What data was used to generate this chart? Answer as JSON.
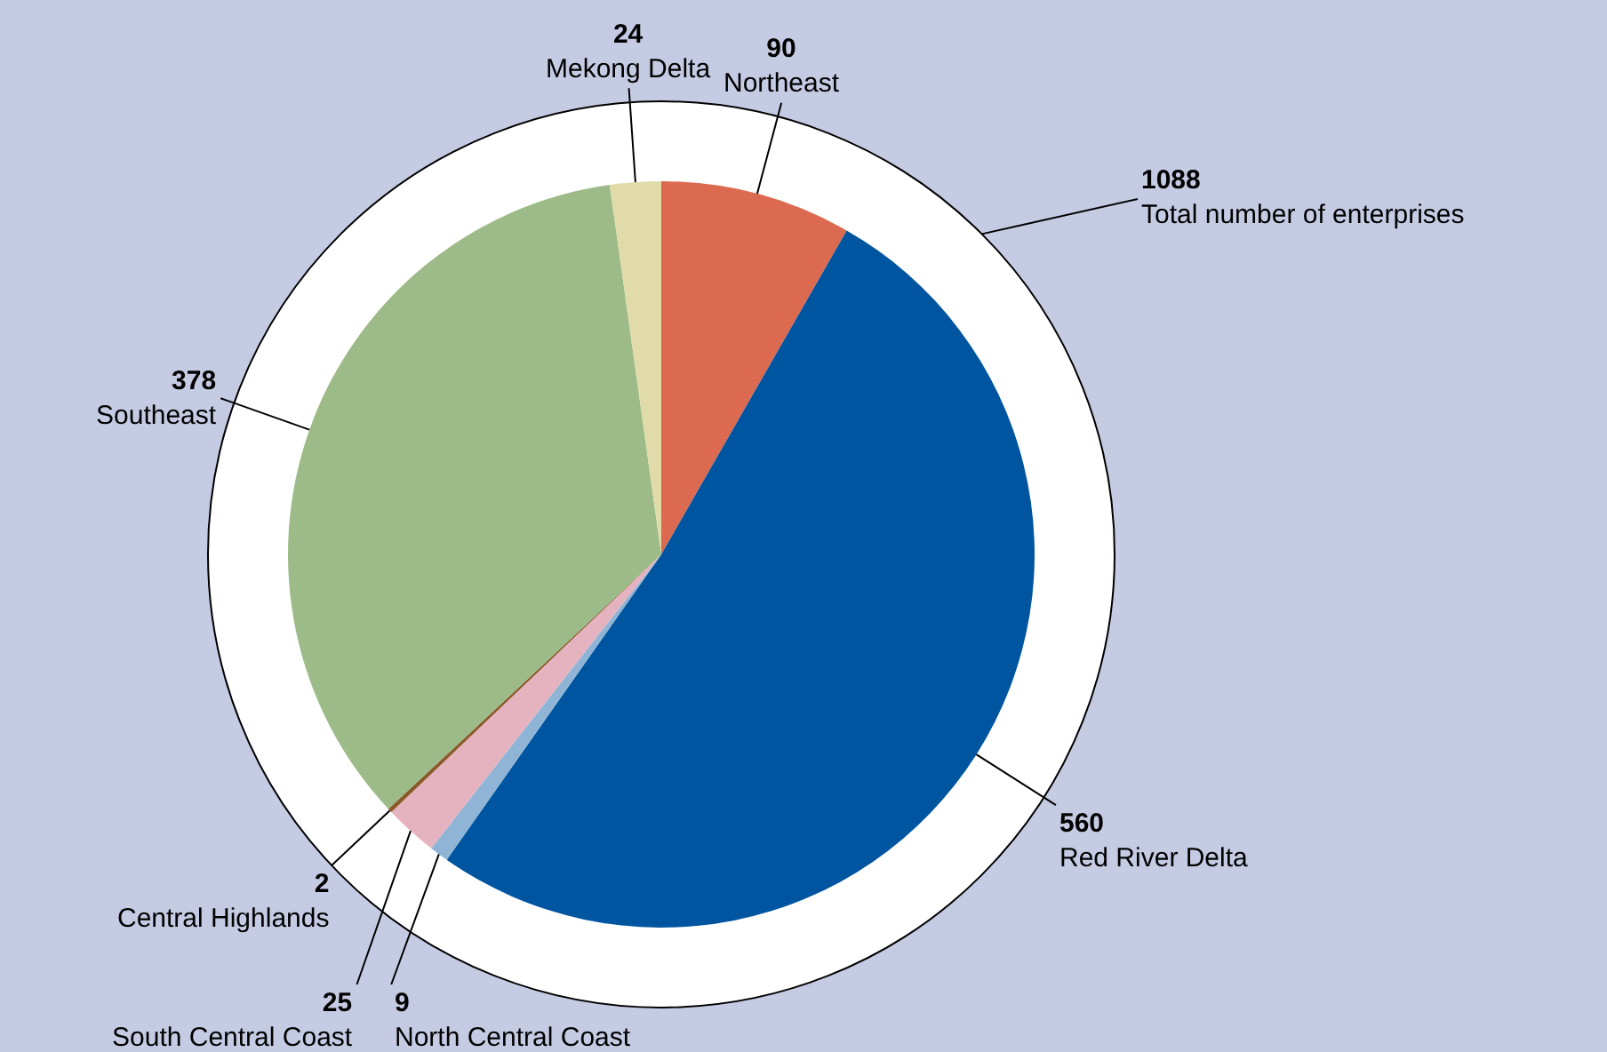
{
  "chart_data": {
    "type": "pie",
    "categories": [
      "Northeast",
      "Red River Delta",
      "North Central Coast",
      "South Central Coast",
      "Central Highlands",
      "Southeast",
      "Mekong Delta"
    ],
    "values": [
      90,
      560,
      9,
      25,
      2,
      378,
      24
    ],
    "colors": [
      "#dc6a50",
      "#0055a0",
      "#8fb4d6",
      "#e5b3c0",
      "#8a5a2a",
      "#9dbb88",
      "#e0dba8"
    ],
    "data_labels": true,
    "legend": false,
    "annotations": [
      "1088",
      "Total number of enterprises"
    ]
  }
}
